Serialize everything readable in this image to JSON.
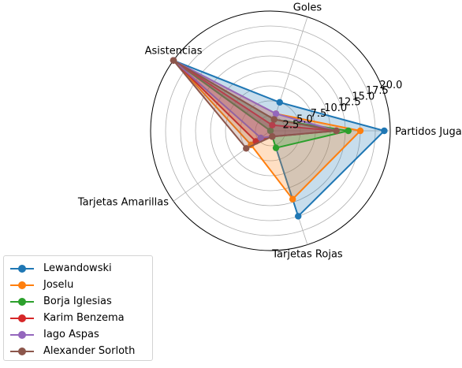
{
  "chart_data": {
    "type": "radar",
    "title": "",
    "axes": [
      "Partidos Jugados",
      "Goles",
      "Asistencias",
      "Tarjetas Amarillas",
      "Tarjetas Rojas"
    ],
    "rlim": [
      0,
      20
    ],
    "r_ticks": [
      "2.5",
      "5.0",
      "7.5",
      "10.0",
      "12.5",
      "15.0",
      "17.5",
      "20.0"
    ],
    "grid": true,
    "legend_position": "bottom-left outside",
    "series": [
      {
        "name": "Lewandowski",
        "color": "#1f77b4",
        "values": [
          19,
          5,
          20,
          0,
          15
        ],
        "filled": true
      },
      {
        "name": "Joseu",
        "color": "#ff7f0e",
        "values": [
          15,
          3,
          20,
          4,
          12
        ],
        "filled": true
      },
      {
        "name": "Borja Iglesias",
        "color": "#2ca02c",
        "values": [
          13,
          2,
          20,
          0,
          3
        ],
        "filled": true
      },
      {
        "name": "Karim Benzema",
        "color": "#d62728",
        "values": [
          11,
          1,
          20,
          3,
          1
        ],
        "filled": true
      },
      {
        "name": "Iago Aspas",
        "color": "#9467bd",
        "values": [
          11,
          3,
          20,
          2,
          1
        ],
        "filled": true
      },
      {
        "name": "Alexander Sorloth",
        "color": "#8c564b",
        "values": [
          11,
          2,
          20,
          5,
          1
        ],
        "filled": true
      }
    ]
  }
}
